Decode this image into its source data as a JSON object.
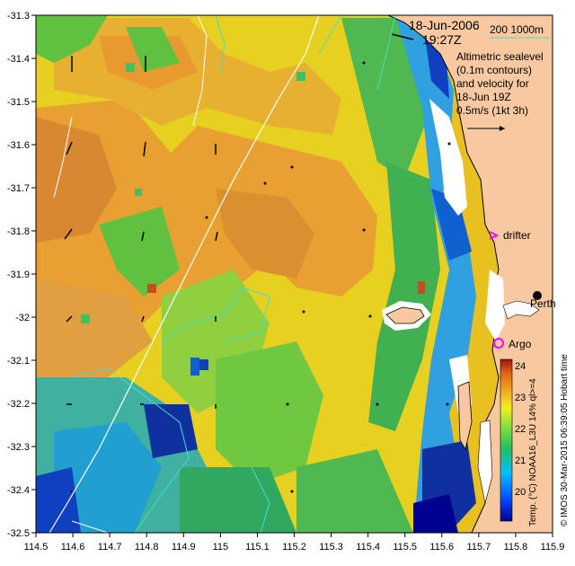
{
  "header": {
    "date": "18-Jun-2006",
    "time": "19:27Z",
    "isobath_label": "200  1000m"
  },
  "legend": {
    "line1": "Altimetric sealevel",
    "line2": "(0.1m contours)",
    "line3": "and velocity for",
    "line4": "18-Jun 19Z",
    "line5": "0.5m/s (1kt 3h)"
  },
  "places": {
    "drifter": "drifter",
    "perth": "Perth",
    "argo": "Argo"
  },
  "colorbar": {
    "title": "Temp. (°C) NOAA16_L3U 14% ql>=4",
    "ticks": [
      "24",
      "23",
      "22",
      "21",
      "20"
    ]
  },
  "credit": "© IMOS 30-Mar-2015 06:39:05 Hobart time",
  "axes": {
    "x_ticks": [
      "114.5",
      "114.6",
      "114.7",
      "114.8",
      "114.9",
      "115",
      "115.1",
      "115.2",
      "115.3",
      "115.4",
      "115.5",
      "115.6",
      "115.7",
      "115.8",
      "115.9"
    ],
    "y_ticks": [
      "-31.3",
      "-31.4",
      "-31.5",
      "-31.6",
      "-31.7",
      "-31.8",
      "-31.9",
      "-32",
      "-32.1",
      "-32.2",
      "-32.3",
      "-32.4",
      "-32.5"
    ]
  },
  "colors": {
    "land": "#f8c8a0",
    "cyan_isobath": "#40e0d0",
    "drifter_marker": "#ff00ff",
    "argo_marker": "#ff00ff"
  }
}
